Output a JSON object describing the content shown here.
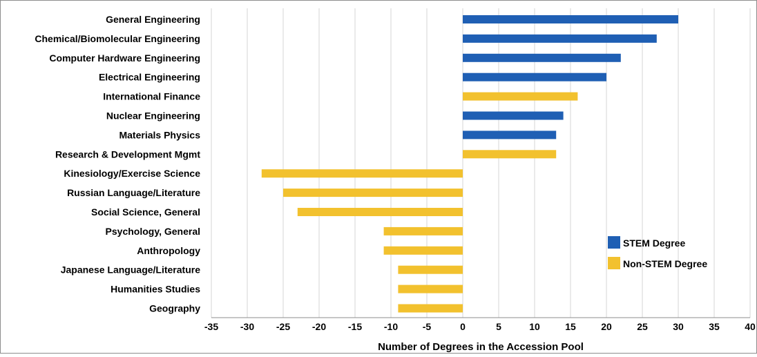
{
  "colors": {
    "stem": "#1f5fb4",
    "non_stem": "#f2c12e",
    "grid": "#d4d4d4",
    "frame": "#8c8c8c",
    "text": "#000000"
  },
  "chart_data": {
    "type": "bar",
    "orientation": "horizontal",
    "xlabel": "Number of Degrees in the Accession Pool",
    "ylabel": "",
    "xlim": [
      -35,
      40
    ],
    "xticks": [
      -35,
      -30,
      -25,
      -20,
      -15,
      -10,
      -5,
      0,
      5,
      10,
      15,
      20,
      25,
      30,
      35,
      40
    ],
    "grid": "vertical",
    "legend_position": "right",
    "legend": [
      {
        "label": "STEM Degree",
        "group": "stem"
      },
      {
        "label": "Non-STEM Degree",
        "group": "non_stem"
      }
    ],
    "categories": [
      "General Engineering",
      "Chemical/Biomolecular Engineering",
      "Computer Hardware Engineering",
      "Electrical Engineering",
      "International Finance",
      "Nuclear Engineering",
      "Materials Physics",
      "Research & Development Mgmt",
      "Kinesiology/Exercise Science",
      "Russian Language/Literature",
      "Social Science, General",
      "Psychology, General",
      "Anthropology",
      "Japanese Language/Literature",
      "Humanities Studies",
      "Geography"
    ],
    "values": [
      30,
      27,
      22,
      20,
      16,
      14,
      13,
      13,
      -28,
      -25,
      -23,
      -11,
      -11,
      -9,
      -9,
      -9
    ],
    "groups": [
      "stem",
      "stem",
      "stem",
      "stem",
      "non_stem",
      "stem",
      "stem",
      "non_stem",
      "non_stem",
      "non_stem",
      "non_stem",
      "non_stem",
      "non_stem",
      "non_stem",
      "non_stem",
      "non_stem"
    ]
  }
}
